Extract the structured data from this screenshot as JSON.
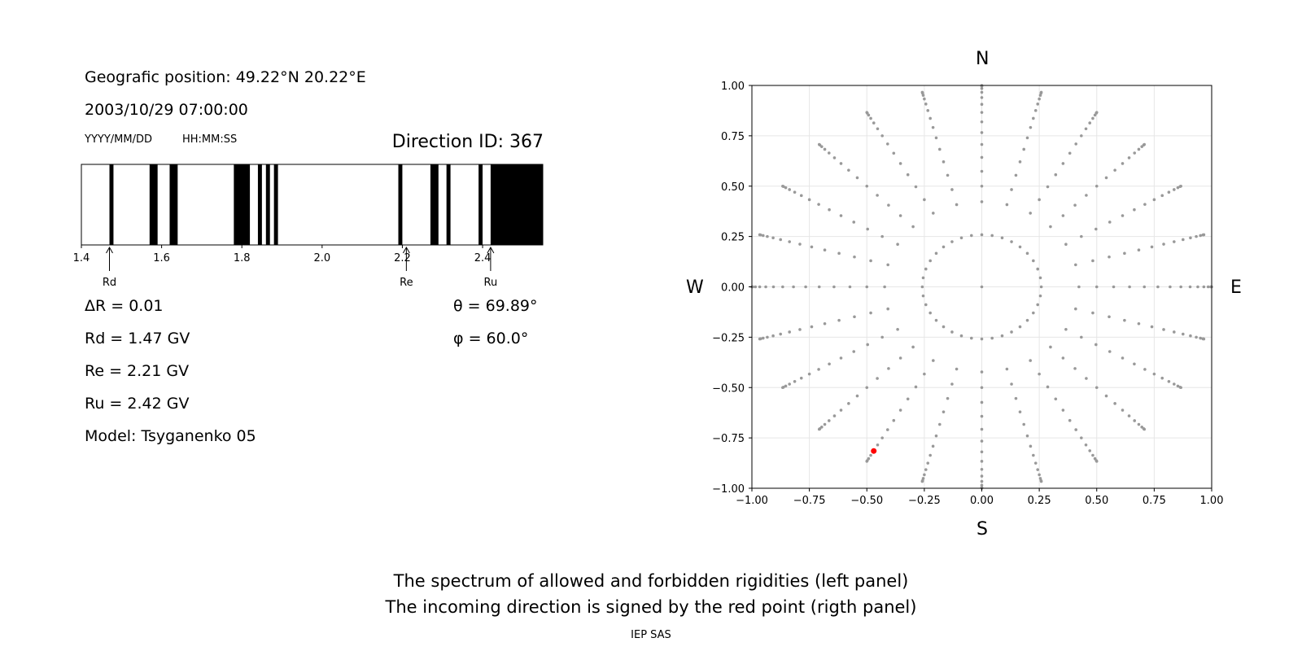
{
  "left_panel": {
    "geo_position": "Geografic position: 49.22°N 20.22°E",
    "datetime": "2003/10/29 07:00:00",
    "date_format": "YYYY/MM/DD",
    "time_format": "HH:MM:SS",
    "direction_id": "Direction ID: 367",
    "delta_r": "ΔR = 0.01",
    "rd": "Rd = 1.47 GV",
    "re": "Re = 2.21 GV",
    "ru": "Ru = 2.42 GV",
    "model": "Model: Tsyganenko 05",
    "theta": "θ = 69.89°",
    "phi": "φ = 60.0°"
  },
  "right_panel": {
    "north": "N",
    "south": "S",
    "west": "W",
    "east": "E"
  },
  "captions": {
    "line1": "The spectrum of allowed and forbidden rigidities (left panel)",
    "line2": "The incoming direction is signed by the red point (rigth panel)",
    "credit": "IEP SAS"
  },
  "colors": {
    "forbidden": "#000000",
    "grid_points": "#999999",
    "highlight_point": "#ff0000"
  },
  "chart_data": [
    {
      "type": "bar",
      "description_role": "rigidity-spectrum",
      "xlim": [
        1.4,
        2.55
      ],
      "xticks": [
        1.4,
        1.6,
        1.8,
        2.0,
        2.2,
        2.4
      ],
      "forbidden_bands": [
        [
          1.47,
          1.48
        ],
        [
          1.57,
          1.59
        ],
        [
          1.62,
          1.64
        ],
        [
          1.78,
          1.82
        ],
        [
          1.84,
          1.85
        ],
        [
          1.86,
          1.87
        ],
        [
          1.88,
          1.89
        ],
        [
          2.19,
          2.2
        ],
        [
          2.27,
          2.29
        ],
        [
          2.31,
          2.32
        ],
        [
          2.39,
          2.4
        ],
        [
          2.42,
          2.55
        ]
      ],
      "markers": [
        {
          "label": "Rd",
          "value": 1.47
        },
        {
          "label": "Re",
          "value": 2.21
        },
        {
          "label": "Ru",
          "value": 2.42
        }
      ]
    },
    {
      "type": "scatter",
      "description_role": "direction-map",
      "xlim": [
        -1.0,
        1.0
      ],
      "ylim": [
        -1.0,
        1.0
      ],
      "xticks": [
        -1.0,
        -0.75,
        -0.5,
        -0.25,
        0.0,
        0.25,
        0.5,
        0.75,
        1.0
      ],
      "yticks": [
        -1.0,
        -0.75,
        -0.5,
        -0.25,
        0.0,
        0.25,
        0.5,
        0.75,
        1.0
      ],
      "grid": true,
      "zenith_rings_deg": [
        0,
        15,
        25,
        35,
        45,
        55,
        65,
        75,
        80,
        85,
        90
      ],
      "azimuth_step_deg": 15,
      "ring_azimuth_step_deg": 10,
      "highlight": {
        "x": -0.47,
        "y": -0.815
      }
    }
  ]
}
